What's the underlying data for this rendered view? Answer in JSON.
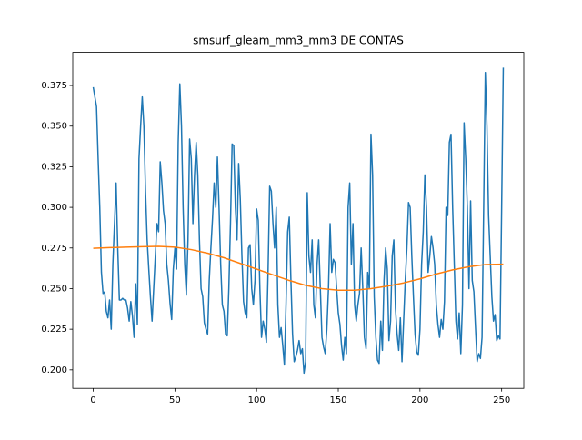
{
  "chart_data": {
    "type": "line",
    "title": "smsurf_gleam_mm3_mm3 DE CONTAS",
    "xlim": [
      -12.55,
      263.55
    ],
    "ylim": [
      0.1886,
      0.3954
    ],
    "xticks": [
      0,
      50,
      100,
      150,
      200,
      250
    ],
    "yticks": [
      {
        "value": 0.2,
        "label": "0.200"
      },
      {
        "value": 0.225,
        "label": "0.225"
      },
      {
        "value": 0.25,
        "label": "0.250"
      },
      {
        "value": 0.275,
        "label": "0.275"
      },
      {
        "value": 0.3,
        "label": "0.300"
      },
      {
        "value": 0.325,
        "label": "0.325"
      },
      {
        "value": 0.35,
        "label": "0.350"
      },
      {
        "value": 0.375,
        "label": "0.375"
      }
    ],
    "series": [
      {
        "color": "#1f77b4",
        "values": [
          0.374,
          0.368,
          0.362,
          0.33,
          0.3,
          0.26,
          0.247,
          0.248,
          0.236,
          0.232,
          0.243,
          0.225,
          0.265,
          0.29,
          0.315,
          0.275,
          0.243,
          0.243,
          0.244,
          0.243,
          0.243,
          0.238,
          0.23,
          0.242,
          0.233,
          0.22,
          0.253,
          0.228,
          0.33,
          0.35,
          0.368,
          0.35,
          0.31,
          0.28,
          0.262,
          0.245,
          0.23,
          0.25,
          0.27,
          0.29,
          0.285,
          0.328,
          0.315,
          0.298,
          0.29,
          0.265,
          0.255,
          0.241,
          0.231,
          0.262,
          0.275,
          0.262,
          0.34,
          0.376,
          0.35,
          0.3,
          0.265,
          0.246,
          0.28,
          0.342,
          0.33,
          0.29,
          0.32,
          0.34,
          0.32,
          0.28,
          0.25,
          0.245,
          0.229,
          0.225,
          0.222,
          0.255,
          0.275,
          0.293,
          0.315,
          0.3,
          0.331,
          0.3,
          0.265,
          0.24,
          0.236,
          0.222,
          0.221,
          0.25,
          0.29,
          0.339,
          0.338,
          0.3,
          0.28,
          0.327,
          0.305,
          0.27,
          0.242,
          0.235,
          0.232,
          0.275,
          0.277,
          0.25,
          0.24,
          0.255,
          0.299,
          0.292,
          0.25,
          0.22,
          0.23,
          0.225,
          0.217,
          0.26,
          0.313,
          0.31,
          0.29,
          0.275,
          0.3,
          0.24,
          0.22,
          0.226,
          0.215,
          0.203,
          0.24,
          0.285,
          0.294,
          0.255,
          0.222,
          0.205,
          0.208,
          0.212,
          0.218,
          0.21,
          0.213,
          0.198,
          0.205,
          0.309,
          0.27,
          0.26,
          0.28,
          0.24,
          0.232,
          0.265,
          0.28,
          0.25,
          0.22,
          0.214,
          0.21,
          0.225,
          0.25,
          0.29,
          0.26,
          0.268,
          0.266,
          0.25,
          0.235,
          0.228,
          0.215,
          0.206,
          0.22,
          0.21,
          0.3,
          0.315,
          0.265,
          0.29,
          0.24,
          0.23,
          0.24,
          0.247,
          0.275,
          0.25,
          0.22,
          0.213,
          0.26,
          0.25,
          0.345,
          0.32,
          0.245,
          0.22,
          0.206,
          0.204,
          0.23,
          0.212,
          0.255,
          0.275,
          0.262,
          0.218,
          0.23,
          0.27,
          0.28,
          0.238,
          0.222,
          0.212,
          0.232,
          0.205,
          0.23,
          0.255,
          0.275,
          0.303,
          0.3,
          0.27,
          0.245,
          0.222,
          0.211,
          0.209,
          0.225,
          0.265,
          0.285,
          0.32,
          0.3,
          0.26,
          0.27,
          0.282,
          0.275,
          0.265,
          0.24,
          0.228,
          0.22,
          0.231,
          0.225,
          0.242,
          0.3,
          0.295,
          0.34,
          0.345,
          0.3,
          0.265,
          0.23,
          0.219,
          0.235,
          0.21,
          0.24,
          0.352,
          0.33,
          0.3,
          0.25,
          0.304,
          0.255,
          0.248,
          0.226,
          0.205,
          0.21,
          0.207,
          0.22,
          0.3,
          0.383,
          0.35,
          0.295,
          0.27,
          0.245,
          0.23,
          0.234,
          0.218,
          0.221,
          0.219,
          0.3,
          0.386
        ]
      },
      {
        "color": "#ff7f0e",
        "x": [
          0,
          10,
          20,
          30,
          40,
          50,
          60,
          70,
          80,
          90,
          100,
          110,
          120,
          130,
          140,
          150,
          160,
          170,
          180,
          190,
          200,
          210,
          220,
          230,
          240,
          250,
          251
        ],
        "values": [
          0.2748,
          0.2752,
          0.2755,
          0.2758,
          0.276,
          0.2755,
          0.274,
          0.2718,
          0.269,
          0.2655,
          0.262,
          0.2585,
          0.255,
          0.252,
          0.25,
          0.249,
          0.249,
          0.25,
          0.2515,
          0.2535,
          0.256,
          0.259,
          0.2615,
          0.2635,
          0.2648,
          0.265,
          0.265
        ]
      }
    ]
  }
}
